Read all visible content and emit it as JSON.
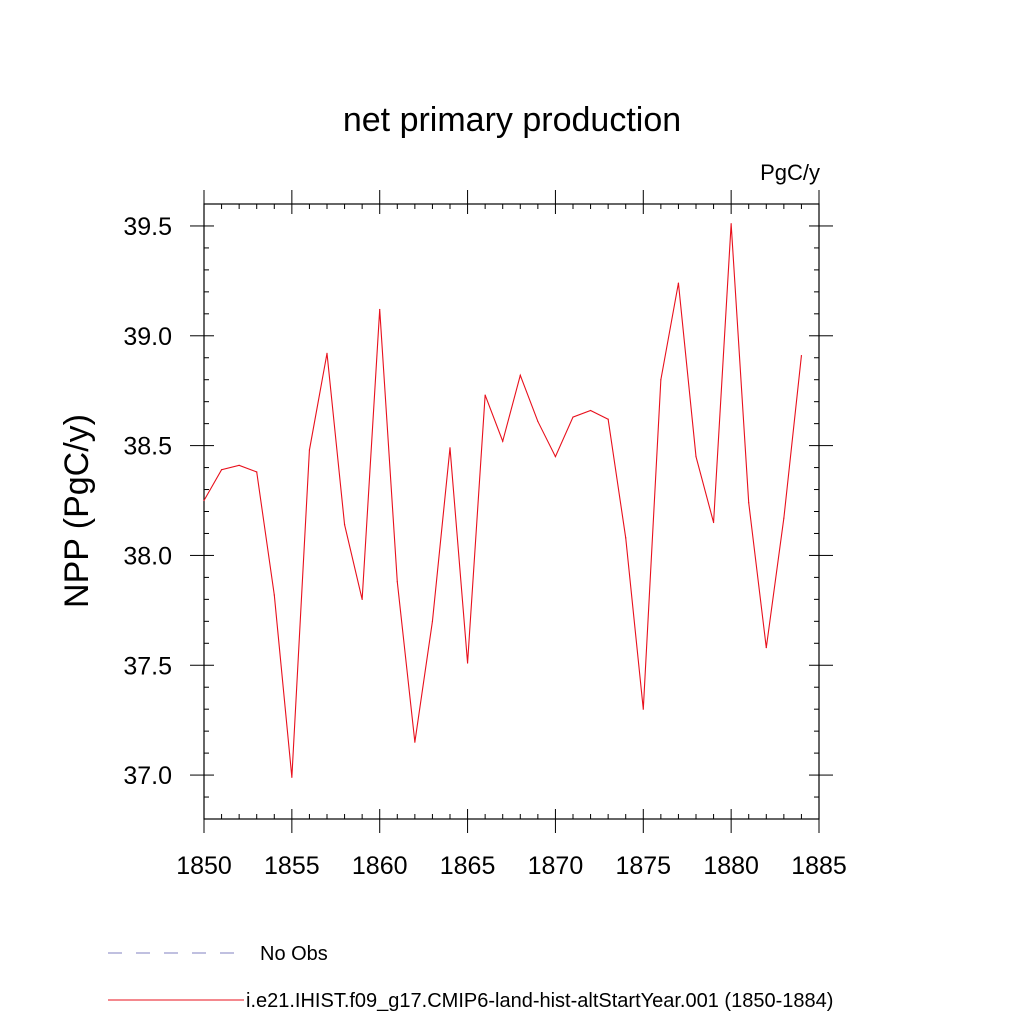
{
  "chart_data": {
    "type": "line",
    "title": "net primary production",
    "units_label": "PgC/y",
    "ylabel": "NPP  (PgC/y)",
    "xlabel": "",
    "xlim": [
      1850,
      1885
    ],
    "ylim": [
      36.8,
      39.6
    ],
    "x_ticks": [
      1850,
      1855,
      1860,
      1865,
      1870,
      1875,
      1880,
      1885
    ],
    "x_tick_labels": [
      "1850",
      "1855",
      "1860",
      "1865",
      "1870",
      "1875",
      "1880",
      "1885"
    ],
    "y_ticks": [
      37.0,
      37.5,
      38.0,
      38.5,
      39.0,
      39.5
    ],
    "y_tick_labels": [
      "37.0",
      "37.5",
      "38.0",
      "38.5",
      "39.0",
      "39.5"
    ],
    "grid": false,
    "legend_position": "bottom-left",
    "series": [
      {
        "name": "i.e21.IHIST.f09_g17.CMIP6-land-hist-altStartYear.001 (1850-1884)",
        "color": "#e8101c",
        "dash": "solid",
        "x": [
          1850,
          1851,
          1852,
          1853,
          1854,
          1855,
          1856,
          1857,
          1858,
          1859,
          1860,
          1861,
          1862,
          1863,
          1864,
          1865,
          1866,
          1867,
          1868,
          1869,
          1870,
          1871,
          1872,
          1873,
          1874,
          1875,
          1876,
          1877,
          1878,
          1879,
          1880,
          1881,
          1882,
          1883,
          1884
        ],
        "values": [
          38.25,
          38.39,
          38.41,
          38.38,
          37.82,
          36.99,
          38.48,
          38.92,
          38.14,
          37.8,
          39.12,
          37.88,
          37.15,
          37.7,
          38.49,
          37.51,
          38.73,
          38.52,
          38.82,
          38.61,
          38.45,
          38.63,
          38.66,
          38.62,
          38.08,
          37.3,
          38.8,
          39.24,
          38.45,
          38.15,
          39.51,
          38.24,
          37.58,
          38.17,
          38.91
        ]
      },
      {
        "name": "No Obs",
        "color": "#8080c0",
        "dash": "dashed",
        "x": [],
        "values": []
      }
    ]
  }
}
